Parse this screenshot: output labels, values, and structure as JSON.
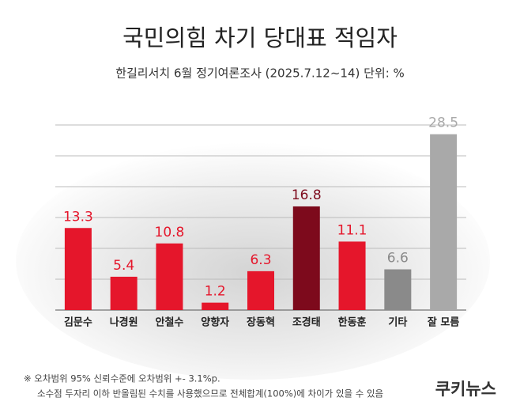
{
  "chart_data": {
    "type": "bar",
    "title": "국민의힘 차기 당대표 적임자",
    "subtitle": "한길리서치 6월 정기여론조사 (2025.7.12~14) 단위: %",
    "categories": [
      "김문수",
      "나경원",
      "안철수",
      "양향자",
      "장동혁",
      "조경태",
      "한동훈",
      "기타",
      "잘 모름"
    ],
    "values": [
      13.3,
      5.4,
      10.8,
      1.2,
      6.3,
      16.8,
      11.1,
      6.6,
      28.5
    ],
    "colors": [
      "#e5162b",
      "#e5162b",
      "#e5162b",
      "#e5162b",
      "#e5162b",
      "#7d0a1c",
      "#e5162b",
      "#8a8a8a",
      "#a9a9a9"
    ],
    "ylim": [
      0,
      30
    ],
    "yticks": [
      0,
      5,
      10,
      15,
      20,
      25,
      30
    ],
    "grid": true,
    "notes": [
      "※ 오차범위 95% 신뢰수준에 오차범위 +- 3.1%p.",
      "소수점 두자리 이하 반올림된 수치를 사용했으므로 전체합계(100%)에 차이가 있을 수 있음"
    ],
    "source": "쿠키뉴스"
  }
}
